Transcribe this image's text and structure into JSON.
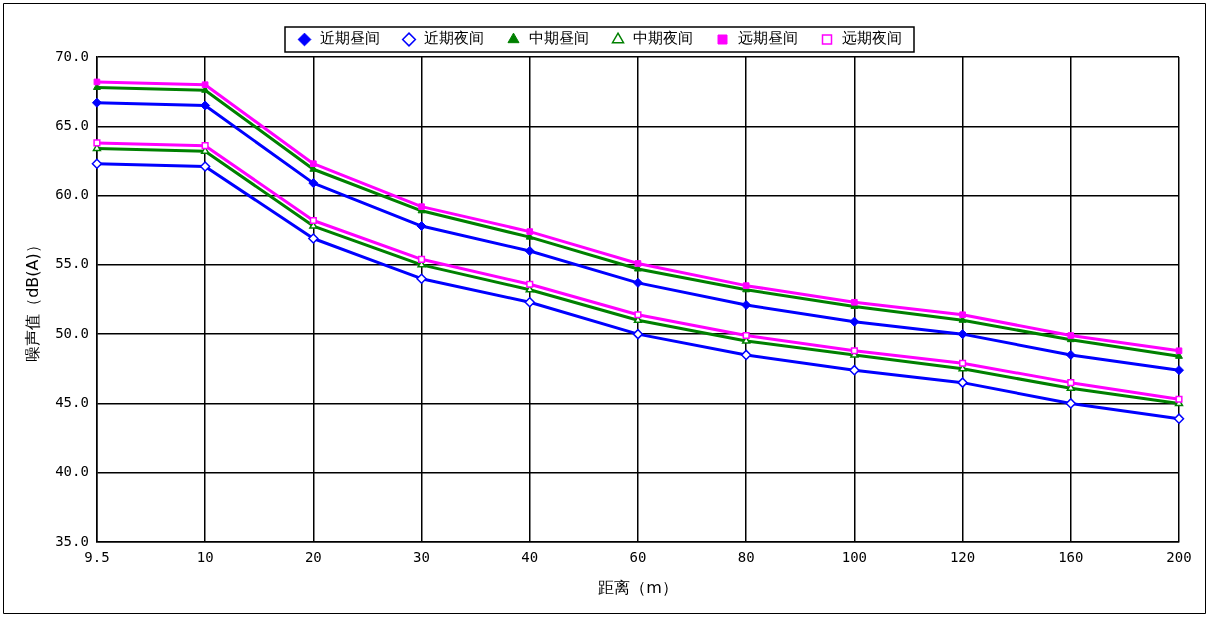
{
  "chart_data": {
    "type": "line",
    "xlabel": "距离（m）",
    "ylabel": "噪声值（dB(A)）",
    "categories": [
      "9.5",
      "10",
      "20",
      "30",
      "40",
      "60",
      "80",
      "100",
      "120",
      "160",
      "200"
    ],
    "ylim": [
      35,
      70
    ],
    "yticks": [
      {
        "value": 35,
        "label": "35.0"
      },
      {
        "value": 40,
        "label": "40.0"
      },
      {
        "value": 45,
        "label": "45.0"
      },
      {
        "value": 50,
        "label": "50.0"
      },
      {
        "value": 55,
        "label": "55.0"
      },
      {
        "value": 60,
        "label": "60.0"
      },
      {
        "value": 65,
        "label": "65.0"
      },
      {
        "value": 70,
        "label": "70.0"
      }
    ],
    "grid": true,
    "legend": "top",
    "line_style": "solid",
    "series": [
      {
        "name": "近期昼间",
        "color": "#0000ff",
        "marker": "diamond",
        "values": [
          66.7,
          66.5,
          60.9,
          57.8,
          56.0,
          53.7,
          52.1,
          50.9,
          50.0,
          48.5,
          47.4
        ]
      },
      {
        "name": "近期夜间",
        "color": "#0000ff",
        "marker": "diamond",
        "values": [
          62.3,
          62.1,
          56.9,
          54.0,
          52.3,
          50.0,
          48.5,
          47.4,
          46.5,
          45.0,
          43.9
        ]
      },
      {
        "name": "中期昼间",
        "color": "#008000",
        "marker": "triangle",
        "values": [
          67.8,
          67.6,
          61.9,
          58.9,
          57.0,
          54.7,
          53.2,
          52.0,
          51.0,
          49.6,
          48.4
        ]
      },
      {
        "name": "中期夜间",
        "color": "#008000",
        "marker": "triangle",
        "values": [
          63.4,
          63.2,
          57.8,
          55.0,
          53.2,
          51.0,
          49.5,
          48.5,
          47.5,
          46.1,
          45.0
        ]
      },
      {
        "name": "远期昼间",
        "color": "#ff00ff",
        "marker": "square",
        "values": [
          68.2,
          68.0,
          62.3,
          59.2,
          57.4,
          55.1,
          53.5,
          52.3,
          51.4,
          49.9,
          48.8
        ]
      },
      {
        "name": "远期夜间",
        "color": "#ff00ff",
        "marker": "square",
        "values": [
          63.8,
          63.6,
          58.2,
          55.4,
          53.6,
          51.4,
          49.9,
          48.8,
          47.9,
          46.5,
          45.3
        ]
      }
    ]
  }
}
